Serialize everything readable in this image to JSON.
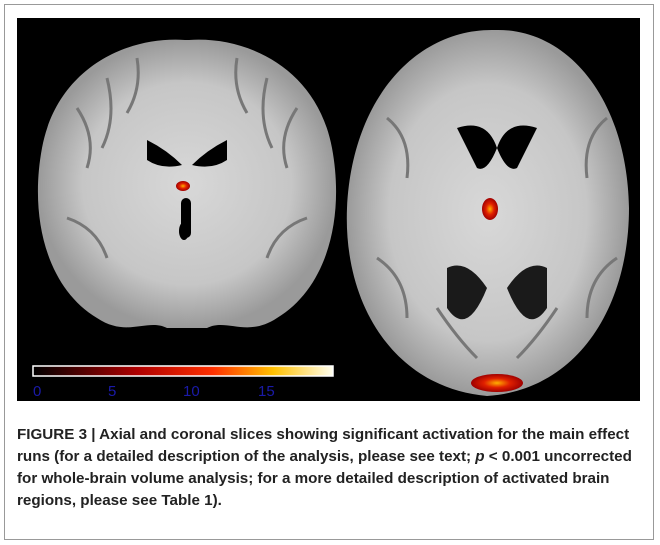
{
  "figure": {
    "colorbar": {
      "ticks": [
        0,
        5,
        10,
        15
      ]
    },
    "caption": {
      "lead": "FIGURE 3 | Axial and coronal slices showing significant activation for the main effect runs (for a detailed description of the analysis, please see text; ",
      "p": "p",
      "middle": " < 0.001 uncorrected for whole-brain volume analysis; for a more detailed description of activated brain regions, please see ",
      "table_ref": "Table 1",
      "end": ")."
    }
  }
}
